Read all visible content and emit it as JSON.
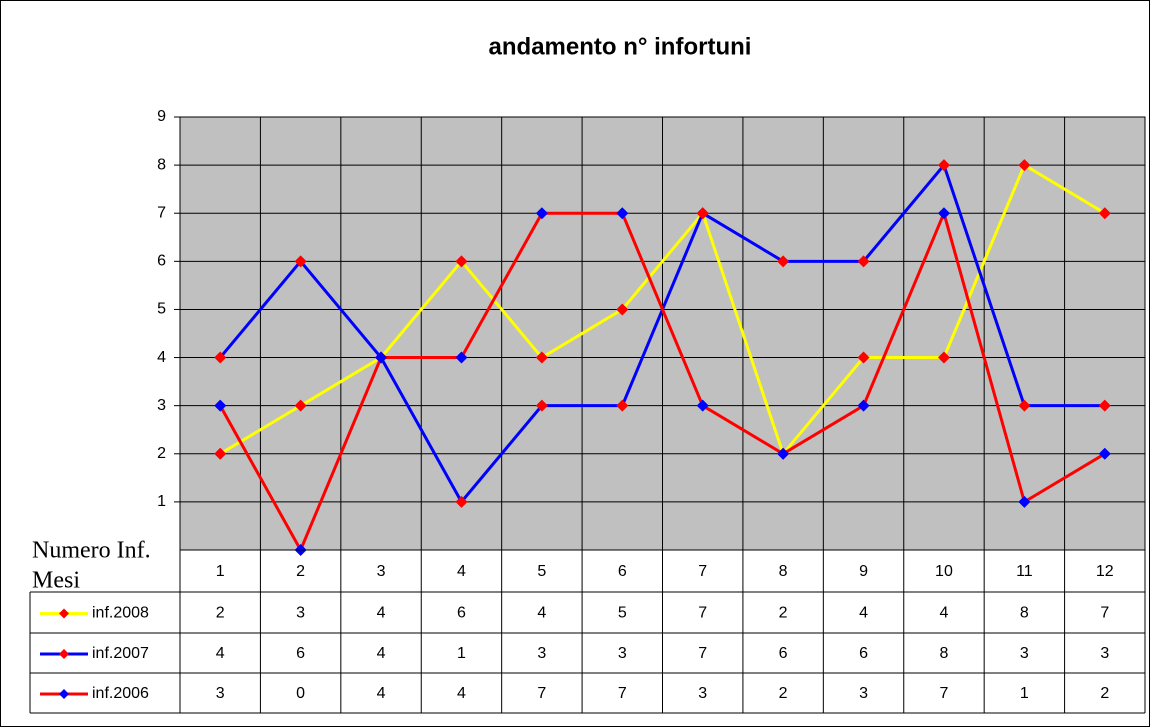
{
  "chart_data": {
    "type": "line",
    "title": "andamento n° infortuni",
    "y_axis_label": "Numero Inf.",
    "x_axis_label": "Mesi",
    "categories": [
      "1",
      "2",
      "3",
      "4",
      "5",
      "6",
      "7",
      "8",
      "9",
      "10",
      "11",
      "12"
    ],
    "series": [
      {
        "name": "inf.2008",
        "color": "#ffff00",
        "marker_color": "#ff0000",
        "values": [
          2,
          3,
          4,
          6,
          4,
          5,
          7,
          2,
          4,
          4,
          8,
          7
        ]
      },
      {
        "name": "inf.2007",
        "color": "#0000ff",
        "marker_color": "#ff0000",
        "values": [
          4,
          6,
          4,
          1,
          3,
          3,
          7,
          6,
          6,
          8,
          3,
          3
        ]
      },
      {
        "name": "inf.2006",
        "color": "#ff0000",
        "marker_color": "#0000ff",
        "values": [
          3,
          0,
          4,
          4,
          7,
          7,
          3,
          2,
          3,
          7,
          1,
          2
        ]
      }
    ],
    "ylim": [
      0,
      9
    ],
    "yticks": [
      1,
      2,
      3,
      4,
      5,
      6,
      7,
      8,
      9
    ],
    "grid": true,
    "data_table": true
  }
}
